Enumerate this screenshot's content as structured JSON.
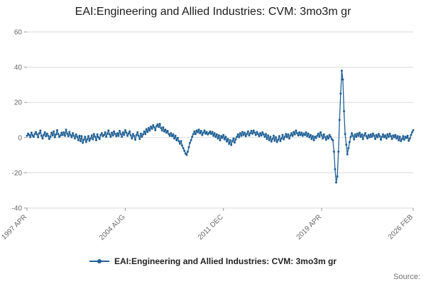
{
  "title": "EAI:Engineering and Allied Industries: CVM: 3mo3m gr",
  "legend": {
    "label": "EAI:Engineering and Allied Industries: CVM: 3mo3m gr"
  },
  "source": "Source:",
  "colors": {
    "line": "#206095",
    "grid": "#d9d9d9",
    "axis": "#999999",
    "tick_text": "#666666"
  },
  "chart_data": {
    "type": "line",
    "title": "EAI:Engineering and Allied Industries: CVM: 3mo3m gr",
    "xlabel": "",
    "ylabel": "",
    "ylim": [
      -40,
      60
    ],
    "yticks": [
      60,
      40,
      20,
      0,
      -20,
      -40
    ],
    "grid": "horizontal",
    "legend_position": "bottom",
    "frequency": "monthly",
    "x_start": "1997 APR",
    "x_end": "2026 FEB",
    "x_tick_labels": [
      {
        "label": "1997 APR",
        "index": 0
      },
      {
        "label": "2004 AUG",
        "index": 88
      },
      {
        "label": "2011 DEC",
        "index": 176
      },
      {
        "label": "2019 APR",
        "index": 264
      },
      {
        "label": "2026 FEB",
        "index": 346
      }
    ],
    "values": [
      1.0,
      2.2,
      1.5,
      0.3,
      2.8,
      1.2,
      0.5,
      2.0,
      3.1,
      1.8,
      0.2,
      2.5,
      4.0,
      1.0,
      -0.5,
      1.5,
      3.0,
      0.8,
      2.2,
      1.0,
      -0.8,
      0.5,
      2.8,
      1.2,
      3.5,
      0.2,
      1.8,
      4.2,
      2.0,
      0.5,
      1.2,
      2.8,
      1.5,
      3.0,
      1.0,
      4.5,
      2.2,
      0.8,
      3.2,
      1.5,
      0.2,
      2.5,
      1.0,
      -0.5,
      1.8,
      0.5,
      -1.5,
      1.0,
      -2.0,
      0.8,
      -3.0,
      -1.2,
      0.5,
      -2.5,
      -1.0,
      0.8,
      -1.8,
      -0.5,
      1.2,
      -1.0,
      2.0,
      0.5,
      -1.5,
      1.8,
      0.2,
      -0.8,
      1.5,
      2.5,
      0.8,
      1.5,
      3.0,
      0.5,
      2.2,
      4.0,
      1.8,
      0.5,
      2.8,
      1.2,
      3.5,
      2.0,
      0.8,
      2.5,
      1.0,
      3.8,
      2.0,
      0.5,
      3.0,
      1.5,
      4.2,
      2.8,
      1.0,
      2.2,
      3.5,
      1.2,
      -0.5,
      2.0,
      0.8,
      -1.2,
      1.5,
      3.0,
      1.0,
      -0.8,
      2.2,
      0.5,
      1.8,
      3.5,
      2.0,
      4.8,
      3.2,
      5.5,
      4.0,
      6.2,
      5.0,
      7.0,
      5.8,
      4.2,
      6.5,
      7.5,
      6.0,
      7.8,
      5.5,
      4.0,
      5.8,
      3.5,
      4.5,
      2.8,
      3.8,
      2.0,
      1.0,
      2.5,
      0.8,
      1.8,
      -0.5,
      1.0,
      -1.5,
      -0.2,
      -2.0,
      -3.5,
      -2.0,
      -4.5,
      -6.0,
      -7.5,
      -9.0,
      -9.8,
      -8.0,
      -5.5,
      -3.0,
      -1.5,
      0.5,
      2.0,
      3.5,
      2.0,
      4.0,
      3.0,
      4.5,
      2.5,
      3.8,
      1.5,
      2.8,
      4.0,
      2.2,
      3.2,
      1.8,
      2.5,
      3.5,
      2.0,
      3.2,
      1.0,
      2.5,
      0.5,
      1.8,
      -0.5,
      1.2,
      -1.5,
      0.8,
      -0.2,
      1.5,
      -1.0,
      0.5,
      -2.2,
      -0.8,
      -3.5,
      -1.5,
      -4.2,
      -2.0,
      -0.5,
      -2.8,
      -1.0,
      0.5,
      1.8,
      0.2,
      2.5,
      1.0,
      3.2,
      1.5,
      2.8,
      0.8,
      2.0,
      3.5,
      1.2,
      2.5,
      3.8,
      2.2,
      4.0,
      2.8,
      1.5,
      3.2,
      2.0,
      0.8,
      2.5,
      1.2,
      3.0,
      1.8,
      0.5,
      2.0,
      -0.8,
      1.2,
      -1.5,
      0.5,
      -2.2,
      -0.8,
      1.0,
      -1.8,
      0.2,
      -2.5,
      -1.2,
      0.8,
      -2.0,
      -0.5,
      1.5,
      -1.0,
      0.5,
      2.0,
      0.2,
      1.8,
      -0.5,
      1.2,
      2.5,
      1.0,
      3.2,
      1.8,
      4.0,
      2.5,
      1.2,
      3.0,
      1.5,
      2.8,
      1.0,
      2.2,
      1.5,
      3.0,
      0.8,
      2.2,
      0.2,
      1.5,
      -0.8,
      0.8,
      -1.5,
      0.5,
      -0.2,
      1.0,
      2.2,
      0.5,
      3.0,
      1.2,
      -0.5,
      1.8,
      0.2,
      -1.2,
      0.8,
      -0.5,
      1.5,
      0.5,
      -0.8,
      -1.5,
      -8.0,
      -18.0,
      -25.5,
      -22.0,
      -8.0,
      10.0,
      25.0,
      38.0,
      33.0,
      15.0,
      2.0,
      -4.0,
      -9.5,
      -6.0,
      -2.5,
      0.5,
      2.5,
      1.0,
      -1.0,
      1.8,
      0.5,
      2.2,
      1.0,
      2.8,
      0.5,
      1.8,
      -0.8,
      1.2,
      2.5,
      0.8,
      -0.5,
      1.5,
      0.2,
      1.8,
      0.5,
      2.2,
      1.0,
      -0.8,
      1.5,
      0.2,
      2.0,
      0.8,
      -1.2,
      0.5,
      1.8,
      0.2,
      1.2,
      -0.5,
      1.8,
      0.5,
      2.2,
      0.8,
      -0.8,
      1.2,
      0.2,
      1.5,
      -0.5,
      0.8,
      -1.5,
      0.5,
      -2.0,
      -0.8,
      0.8,
      -1.2,
      0.5,
      -0.2,
      1.0,
      -1.8,
      -0.5,
      1.5,
      3.0,
      4.2
    ]
  }
}
